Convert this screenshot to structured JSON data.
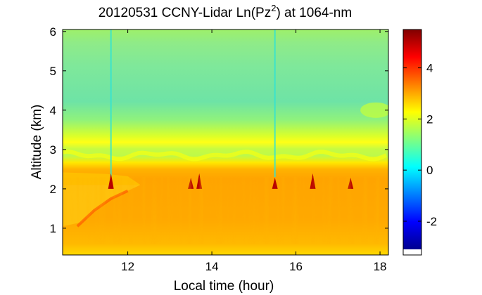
{
  "chart_data": {
    "type": "heatmap",
    "title": {
      "date": "20120531",
      "main": "CCNY-Lidar Ln(Pz",
      "superscript": "2",
      "suffix": ") at 1064-nm"
    },
    "xlabel": "Local time (hour)",
    "ylabel": "Altitude (km)",
    "xlim": [
      10.45,
      18.2
    ],
    "ylim": [
      0.32,
      6.05
    ],
    "xticks": [
      "12",
      "14",
      "16",
      "18"
    ],
    "yticks": [
      "1",
      "2",
      "3",
      "4",
      "5",
      "6"
    ],
    "colorbar": {
      "range": [
        -3.1,
        5.5
      ],
      "ticks": [
        "-2",
        "0",
        "2",
        "4"
      ],
      "colormap": "jet"
    },
    "layers": [
      {
        "altitude_range_km": [
          0.32,
          0.45
        ],
        "value": 3.2
      },
      {
        "altitude_range_km": [
          0.45,
          2.1
        ],
        "value": 3.4
      },
      {
        "altitude_range_km": [
          2.1,
          2.4
        ],
        "value": 3.0
      },
      {
        "altitude_range_km": [
          2.4,
          2.75
        ],
        "value": 2.0
      },
      {
        "altitude_range_km": [
          2.75,
          3.0
        ],
        "value": 2.5
      },
      {
        "altitude_range_km": [
          3.0,
          6.05
        ],
        "value": 1.7
      }
    ],
    "features": [
      {
        "name": "boundary_layer_top_km",
        "value": 2.1
      },
      {
        "name": "residual_layer_km",
        "value": 2.85
      },
      {
        "name": "cloud_spike_times_hour",
        "values": [
          11.6,
          13.5,
          13.7,
          15.5,
          16.4,
          17.3
        ]
      },
      {
        "name": "vertical_streak_times_hour",
        "values": [
          11.6,
          15.5
        ]
      }
    ]
  }
}
